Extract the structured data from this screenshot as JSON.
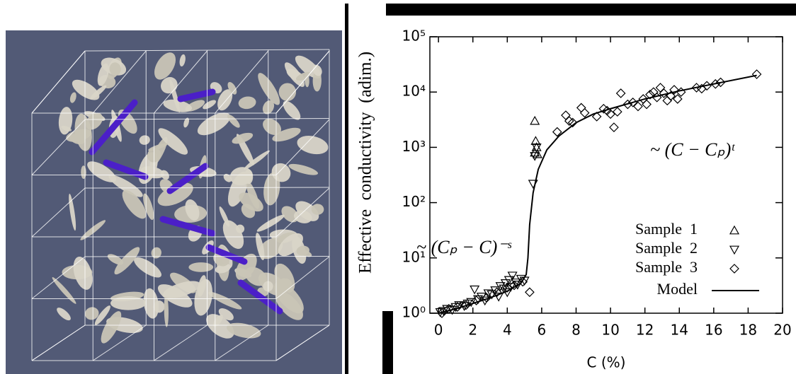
{
  "chart_data": {
    "type": "scatter",
    "x_label": "C (%)",
    "y_label": "Effective  conductivity  (adim.)",
    "annotations": [
      "~ (C − Cₚ)ᵗ",
      "~ (Cₚ − C)⁻ˢ"
    ],
    "xlim": [
      -0.5,
      20
    ],
    "xticks": [
      0,
      2,
      4,
      6,
      8,
      10,
      12,
      14,
      16,
      18,
      20
    ],
    "ylim": [
      1,
      100000
    ],
    "log_y": true,
    "yticks": [
      {
        "value": 1,
        "label": "10⁰"
      },
      {
        "value": 10,
        "label": "10¹"
      },
      {
        "value": 100,
        "label": "10²"
      },
      {
        "value": 1000,
        "label": "10³"
      },
      {
        "value": 10000,
        "label": "10⁴"
      },
      {
        "value": 100000,
        "label": "10⁵"
      }
    ],
    "legend": "lower right",
    "series": [
      {
        "name": "Sample  1",
        "color": "#000000",
        "marker": "triangle",
        "x": [
          5.6,
          5.65,
          5.7,
          5.6,
          5.75
        ],
        "values": [
          3000,
          1300,
          1000,
          800,
          750
        ]
      },
      {
        "name": "Sample  2",
        "color": "#000000",
        "marker": "triangle-down",
        "x": [
          0.1,
          0.3,
          0.5,
          0.8,
          1.0,
          1.2,
          1.5,
          1.7,
          1.9,
          2.1,
          2.3,
          2.5,
          2.7,
          2.9,
          3.1,
          3.3,
          3.5,
          3.6,
          3.8,
          3.9,
          4.0,
          4.1,
          4.2,
          4.3,
          4.5,
          4.6,
          4.8,
          5.0,
          5.5,
          5.6,
          5.7
        ],
        "values": [
          1.05,
          1.1,
          1.2,
          1.15,
          1.3,
          1.4,
          1.35,
          1.5,
          1.6,
          2.7,
          1.8,
          2.0,
          1.7,
          2.3,
          2.2,
          2.6,
          2.0,
          3.1,
          2.8,
          3.5,
          2.4,
          4.0,
          3.0,
          4.8,
          3.6,
          3.3,
          4.2,
          3.9,
          220,
          700,
          1000
        ]
      },
      {
        "name": "Sample  3",
        "color": "#000000",
        "marker": "diamond",
        "x": [
          0.2,
          0.6,
          1.1,
          1.6,
          2.2,
          2.8,
          3.4,
          4.0,
          4.4,
          4.9,
          5.3,
          6.9,
          7.4,
          7.6,
          7.8,
          8.3,
          8.5,
          9.2,
          9.6,
          9.8,
          10.0,
          10.2,
          10.4,
          10.6,
          11.0,
          11.3,
          11.6,
          11.9,
          12.1,
          12.3,
          12.5,
          12.7,
          12.9,
          13.1,
          13.3,
          13.5,
          13.7,
          13.9,
          14.1,
          15.0,
          15.3,
          15.6,
          16.1,
          16.4,
          18.5
        ],
        "values": [
          1.0,
          1.2,
          1.3,
          1.4,
          1.7,
          1.9,
          2.4,
          2.9,
          3.2,
          3.7,
          2.4,
          1900,
          3800,
          3000,
          2800,
          5200,
          4200,
          3600,
          5000,
          4600,
          4000,
          2300,
          4400,
          9500,
          6000,
          6500,
          5500,
          7500,
          6000,
          9000,
          10000,
          8000,
          12000,
          9500,
          7000,
          8500,
          11000,
          7500,
          10000,
          12000,
          11500,
          13000,
          14000,
          15000,
          21000
        ]
      },
      {
        "name": "Model",
        "color": "#000000",
        "marker": "line",
        "x": [
          0,
          1,
          2,
          3,
          4,
          4.8,
          5.1,
          5.2,
          5.3,
          5.5,
          5.8,
          6.3,
          7,
          8,
          9,
          10,
          12,
          14,
          16,
          18.5
        ],
        "values": [
          1,
          1.2,
          1.5,
          1.9,
          2.5,
          3.5,
          5,
          10,
          40,
          150,
          400,
          900,
          1600,
          2800,
          4000,
          5000,
          7500,
          10500,
          14000,
          20000
        ]
      }
    ]
  }
}
